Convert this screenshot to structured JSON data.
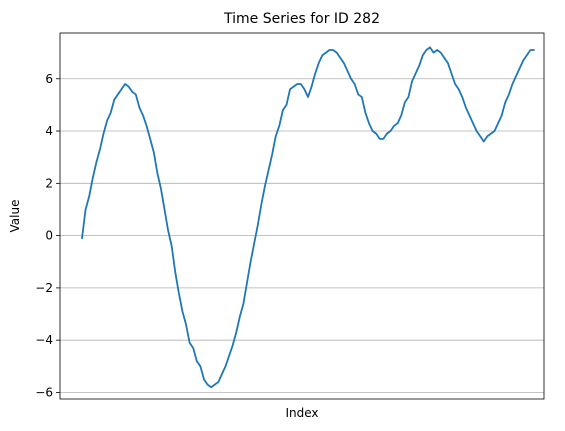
{
  "chart_data": {
    "type": "line",
    "title": "Time Series for ID 282",
    "xlabel": "Index",
    "ylabel": "Value",
    "ylim": [
      -6.25,
      7.75
    ],
    "yticks": [
      -6,
      -4,
      -2,
      0,
      2,
      4,
      6
    ],
    "grid": "horizontal",
    "line_color": "#1f77b4",
    "series": [
      {
        "values": [
          -0.1,
          1.0,
          1.5,
          2.2,
          2.8,
          3.3,
          3.9,
          4.4,
          4.7,
          5.2,
          5.4,
          5.6,
          5.8,
          5.7,
          5.5,
          5.4,
          4.9,
          4.6,
          4.2,
          3.7,
          3.2,
          2.4,
          1.8,
          1.0,
          0.2,
          -0.4,
          -1.4,
          -2.2,
          -2.9,
          -3.4,
          -4.1,
          -4.3,
          -4.8,
          -5.0,
          -5.5,
          -5.7,
          -5.8,
          -5.7,
          -5.6,
          -5.3,
          -5.0,
          -4.6,
          -4.2,
          -3.7,
          -3.1,
          -2.6,
          -1.8,
          -1.0,
          -0.3,
          0.4,
          1.2,
          1.9,
          2.5,
          3.1,
          3.8,
          4.2,
          4.8,
          5.0,
          5.6,
          5.7,
          5.8,
          5.8,
          5.6,
          5.3,
          5.7,
          6.2,
          6.6,
          6.9,
          7.0,
          7.1,
          7.1,
          7.0,
          6.8,
          6.6,
          6.3,
          6.0,
          5.8,
          5.4,
          5.3,
          4.7,
          4.3,
          4.0,
          3.9,
          3.7,
          3.7,
          3.9,
          4.0,
          4.2,
          4.3,
          4.6,
          5.1,
          5.3,
          5.9,
          6.2,
          6.5,
          6.9,
          7.1,
          7.2,
          7.0,
          7.1,
          7.0,
          6.8,
          6.6,
          6.2,
          5.8,
          5.6,
          5.3,
          4.9,
          4.6,
          4.3,
          4.0,
          3.8,
          3.6,
          3.8,
          3.9,
          4.0,
          4.3,
          4.6,
          5.1,
          5.4,
          5.8,
          6.1,
          6.4,
          6.7,
          6.9,
          7.1,
          7.1
        ]
      }
    ]
  }
}
